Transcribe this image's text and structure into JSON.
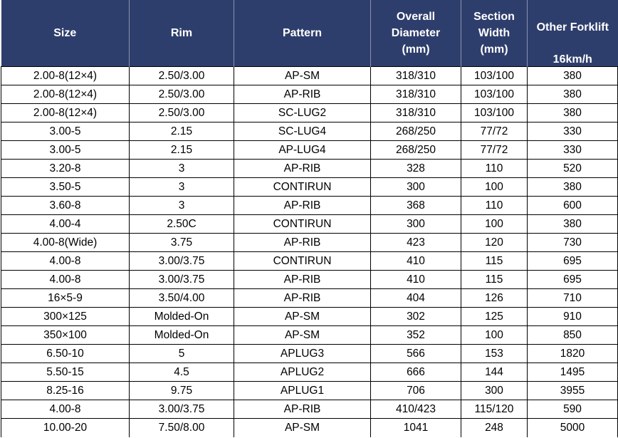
{
  "header": {
    "size": "Size",
    "rim": "Rim",
    "pattern": "Pattern",
    "diameter": [
      "Overall",
      "Diameter",
      "(mm)"
    ],
    "width": [
      "Section",
      "Width",
      "(mm)"
    ],
    "forklift": "Other Forklift",
    "speed": "16km/h"
  },
  "rows": [
    [
      "2.00-8(12×4)",
      "2.50/3.00",
      "AP-SM",
      "318/310",
      "103/100",
      "380"
    ],
    [
      "2.00-8(12×4)",
      "2.50/3.00",
      "AP-RIB",
      "318/310",
      "103/100",
      "380"
    ],
    [
      "2.00-8(12×4)",
      "2.50/3.00",
      "SC-LUG2",
      "318/310",
      "103/100",
      "380"
    ],
    [
      "3.00-5",
      "2.15",
      "SC-LUG4",
      "268/250",
      "77/72",
      "330"
    ],
    [
      "3.00-5",
      "2.15",
      "AP-LUG4",
      "268/250",
      "77/72",
      "330"
    ],
    [
      "3.20-8",
      "3",
      "AP-RIB",
      "328",
      "110",
      "520"
    ],
    [
      "3.50-5",
      "3",
      "CONTIRUN",
      "300",
      "100",
      "380"
    ],
    [
      "3.60-8",
      "3",
      "AP-RIB",
      "368",
      "110",
      "600"
    ],
    [
      "4.00-4",
      "2.50C",
      "CONTIRUN",
      "300",
      "100",
      "380"
    ],
    [
      "4.00-8(Wide)",
      "3.75",
      "AP-RIB",
      "423",
      "120",
      "730"
    ],
    [
      "4.00-8",
      "3.00/3.75",
      "CONTIRUN",
      "410",
      "115",
      "695"
    ],
    [
      "4.00-8",
      "3.00/3.75",
      "AP-RIB",
      "410",
      "115",
      "695"
    ],
    [
      "16×5-9",
      "3.50/4.00",
      "AP-RIB",
      "404",
      "126",
      "710"
    ],
    [
      "300×125",
      "Molded-On",
      "AP-SM",
      "302",
      "125",
      "910"
    ],
    [
      "350×100",
      "Molded-On",
      "AP-SM",
      "352",
      "100",
      "850"
    ],
    [
      "6.50-10",
      "5",
      "APLUG3",
      "566",
      "153",
      "1820"
    ],
    [
      "5.50-15",
      "4.5",
      "APLUG2",
      "666",
      "144",
      "1495"
    ],
    [
      "8.25-16",
      "9.75",
      "APLUG1",
      "706",
      "300",
      "3955"
    ],
    [
      "4.00-8",
      "3.00/3.75",
      "AP-RIB",
      "410/423",
      "115/120",
      "590"
    ],
    [
      "10.00-20",
      "7.50/8.00",
      "AP-SM",
      "1041",
      "248",
      "5000"
    ]
  ]
}
